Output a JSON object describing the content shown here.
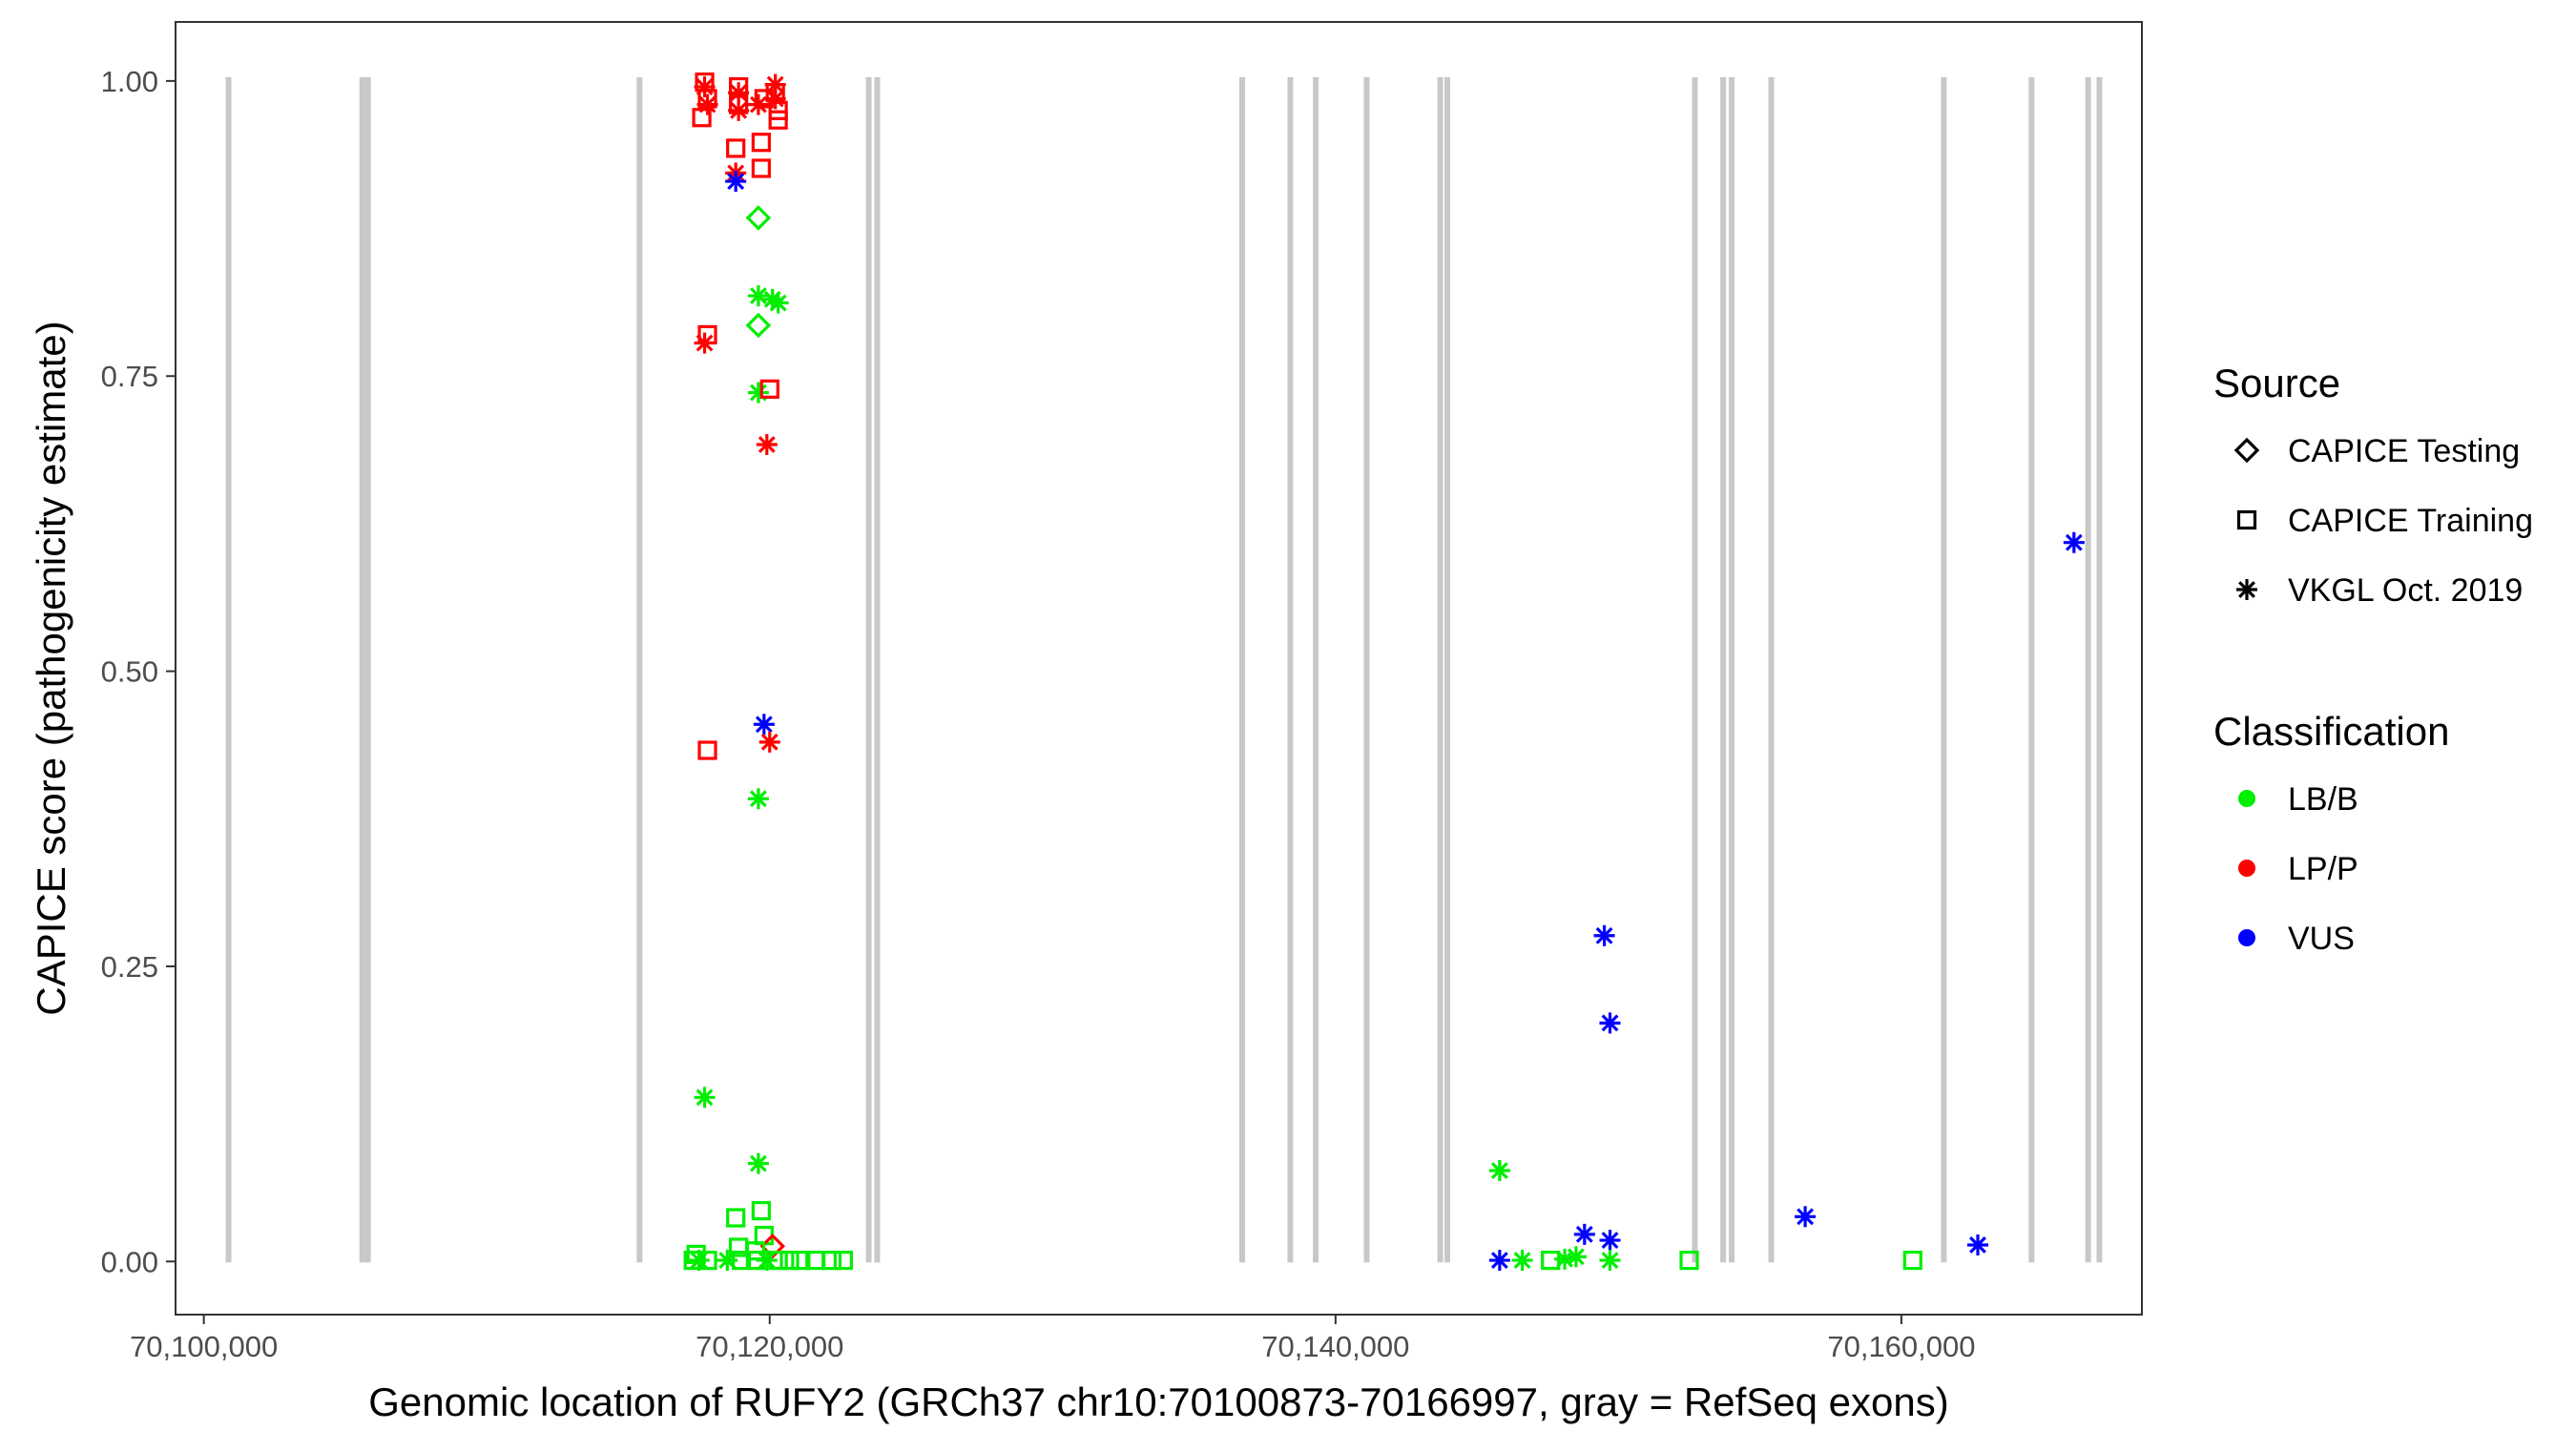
{
  "chart_data": {
    "type": "scatter",
    "title": "",
    "xlabel": "Genomic location of RUFY2 (GRCh37 chr10:70100873-70166997, gray = RefSeq exons)",
    "ylabel": "CAPICE score (pathogenicity estimate)",
    "xlim": [
      70099000,
      70168500
    ],
    "ylim": [
      -0.045,
      1.05
    ],
    "x_ticks": [
      70100000,
      70120000,
      70140000,
      70160000
    ],
    "x_tick_labels": [
      "70,100,000",
      "70,120,000",
      "70,140,000",
      "70,160,000"
    ],
    "y_ticks": [
      0,
      0.25,
      0.5,
      0.75,
      1.0
    ],
    "y_tick_labels": [
      "0.00",
      "0.25",
      "0.50",
      "0.75",
      "1.00"
    ],
    "grid": false,
    "exon_color": "#c8c8c8",
    "exons": [
      70100873,
      70105600,
      70105800,
      70115400,
      70123500,
      70123800,
      70136700,
      70138400,
      70139300,
      70141100,
      70143700,
      70143950,
      70152700,
      70153700,
      70154000,
      70155400,
      70161500,
      70164600,
      70166600,
      70166997
    ],
    "legend": {
      "placement": "right",
      "source_title": "Source",
      "source_items": [
        {
          "label": "CAPICE Testing",
          "shape": "diamond"
        },
        {
          "label": "CAPICE Training",
          "shape": "square"
        },
        {
          "label": "VKGL Oct. 2019",
          "shape": "asterisk"
        }
      ],
      "class_title": "Classification",
      "class_items": [
        {
          "label": "LB/B",
          "color": "#00ee00"
        },
        {
          "label": "LP/P",
          "color": "#ff0000"
        },
        {
          "label": "VUS",
          "color": "#0000ff"
        }
      ]
    },
    "colors": {
      "LB/B": "#00ee00",
      "LP/P": "#ff0000",
      "VUS": "#0000ff"
    },
    "points": [
      {
        "x": 70117700,
        "y": 0.999,
        "src": "square",
        "cls": "LP/P"
      },
      {
        "x": 70117700,
        "y": 0.995,
        "src": "asterisk",
        "cls": "LP/P"
      },
      {
        "x": 70117800,
        "y": 0.985,
        "src": "square",
        "cls": "LP/P"
      },
      {
        "x": 70117800,
        "y": 0.98,
        "src": "asterisk",
        "cls": "LP/P"
      },
      {
        "x": 70117600,
        "y": 0.969,
        "src": "square",
        "cls": "LP/P"
      },
      {
        "x": 70118900,
        "y": 0.995,
        "src": "square",
        "cls": "LP/P"
      },
      {
        "x": 70118900,
        "y": 0.99,
        "src": "asterisk",
        "cls": "LP/P"
      },
      {
        "x": 70118900,
        "y": 0.98,
        "src": "square",
        "cls": "LP/P"
      },
      {
        "x": 70118900,
        "y": 0.975,
        "src": "asterisk",
        "cls": "LP/P"
      },
      {
        "x": 70119600,
        "y": 0.98,
        "src": "asterisk",
        "cls": "LP/P"
      },
      {
        "x": 70119800,
        "y": 0.985,
        "src": "square",
        "cls": "LP/P"
      },
      {
        "x": 70120200,
        "y": 0.997,
        "src": "asterisk",
        "cls": "LP/P"
      },
      {
        "x": 70120200,
        "y": 0.99,
        "src": "square",
        "cls": "LP/P"
      },
      {
        "x": 70120200,
        "y": 0.985,
        "src": "asterisk",
        "cls": "LP/P"
      },
      {
        "x": 70120300,
        "y": 0.975,
        "src": "square",
        "cls": "LP/P"
      },
      {
        "x": 70120300,
        "y": 0.967,
        "src": "square",
        "cls": "LP/P"
      },
      {
        "x": 70118800,
        "y": 0.943,
        "src": "square",
        "cls": "LP/P"
      },
      {
        "x": 70119700,
        "y": 0.948,
        "src": "square",
        "cls": "LP/P"
      },
      {
        "x": 70119700,
        "y": 0.926,
        "src": "square",
        "cls": "LP/P"
      },
      {
        "x": 70118800,
        "y": 0.922,
        "src": "asterisk",
        "cls": "LP/P"
      },
      {
        "x": 70118800,
        "y": 0.915,
        "src": "asterisk",
        "cls": "VUS"
      },
      {
        "x": 70119600,
        "y": 0.884,
        "src": "diamond",
        "cls": "LB/B"
      },
      {
        "x": 70119600,
        "y": 0.818,
        "src": "asterisk",
        "cls": "LB/B"
      },
      {
        "x": 70120100,
        "y": 0.815,
        "src": "asterisk",
        "cls": "LB/B"
      },
      {
        "x": 70120300,
        "y": 0.812,
        "src": "asterisk",
        "cls": "LB/B"
      },
      {
        "x": 70119600,
        "y": 0.793,
        "src": "diamond",
        "cls": "LB/B"
      },
      {
        "x": 70117800,
        "y": 0.785,
        "src": "square",
        "cls": "LP/P"
      },
      {
        "x": 70117700,
        "y": 0.778,
        "src": "asterisk",
        "cls": "LP/P"
      },
      {
        "x": 70119600,
        "y": 0.736,
        "src": "asterisk",
        "cls": "LB/B"
      },
      {
        "x": 70120000,
        "y": 0.739,
        "src": "square",
        "cls": "LP/P"
      },
      {
        "x": 70119900,
        "y": 0.692,
        "src": "asterisk",
        "cls": "LP/P"
      },
      {
        "x": 70119800,
        "y": 0.455,
        "src": "asterisk",
        "cls": "VUS"
      },
      {
        "x": 70120000,
        "y": 0.44,
        "src": "asterisk",
        "cls": "LP/P"
      },
      {
        "x": 70117800,
        "y": 0.433,
        "src": "square",
        "cls": "LP/P"
      },
      {
        "x": 70119600,
        "y": 0.392,
        "src": "asterisk",
        "cls": "LB/B"
      },
      {
        "x": 70117700,
        "y": 0.139,
        "src": "asterisk",
        "cls": "LB/B"
      },
      {
        "x": 70119600,
        "y": 0.083,
        "src": "asterisk",
        "cls": "LB/B"
      },
      {
        "x": 70119700,
        "y": 0.043,
        "src": "square",
        "cls": "LB/B"
      },
      {
        "x": 70118800,
        "y": 0.037,
        "src": "square",
        "cls": "LB/B"
      },
      {
        "x": 70119800,
        "y": 0.022,
        "src": "square",
        "cls": "LB/B"
      },
      {
        "x": 70120100,
        "y": 0.013,
        "src": "diamond",
        "cls": "LP/P"
      },
      {
        "x": 70118900,
        "y": 0.012,
        "src": "square",
        "cls": "LB/B"
      },
      {
        "x": 70119500,
        "y": 0.009,
        "src": "square",
        "cls": "LB/B"
      },
      {
        "x": 70117400,
        "y": 0.006,
        "src": "square",
        "cls": "LB/B"
      },
      {
        "x": 70117300,
        "y": 0.001,
        "src": "square",
        "cls": "LB/B"
      },
      {
        "x": 70117500,
        "y": 0.001,
        "src": "asterisk",
        "cls": "LB/B"
      },
      {
        "x": 70117800,
        "y": 0.001,
        "src": "square",
        "cls": "LB/B"
      },
      {
        "x": 70118500,
        "y": 0.001,
        "src": "asterisk",
        "cls": "LB/B"
      },
      {
        "x": 70119000,
        "y": 0.001,
        "src": "square",
        "cls": "LB/B"
      },
      {
        "x": 70119500,
        "y": 0.001,
        "src": "square",
        "cls": "LB/B"
      },
      {
        "x": 70119900,
        "y": 0.001,
        "src": "asterisk",
        "cls": "LB/B"
      },
      {
        "x": 70120300,
        "y": 0.001,
        "src": "square",
        "cls": "LB/B"
      },
      {
        "x": 70120700,
        "y": 0.001,
        "src": "square",
        "cls": "LB/B"
      },
      {
        "x": 70121100,
        "y": 0.001,
        "src": "square",
        "cls": "LB/B"
      },
      {
        "x": 70121600,
        "y": 0.001,
        "src": "square",
        "cls": "LB/B"
      },
      {
        "x": 70122200,
        "y": 0.001,
        "src": "square",
        "cls": "LB/B"
      },
      {
        "x": 70122600,
        "y": 0.001,
        "src": "square",
        "cls": "LB/B"
      },
      {
        "x": 70145800,
        "y": 0.077,
        "src": "asterisk",
        "cls": "LB/B"
      },
      {
        "x": 70145800,
        "y": 0.001,
        "src": "asterisk",
        "cls": "VUS"
      },
      {
        "x": 70146600,
        "y": 0.001,
        "src": "asterisk",
        "cls": "LB/B"
      },
      {
        "x": 70147600,
        "y": 0.001,
        "src": "square",
        "cls": "LB/B"
      },
      {
        "x": 70148100,
        "y": 0.002,
        "src": "asterisk",
        "cls": "LB/B"
      },
      {
        "x": 70148500,
        "y": 0.004,
        "src": "asterisk",
        "cls": "LB/B"
      },
      {
        "x": 70148800,
        "y": 0.023,
        "src": "asterisk",
        "cls": "VUS"
      },
      {
        "x": 70149500,
        "y": 0.276,
        "src": "asterisk",
        "cls": "VUS"
      },
      {
        "x": 70149700,
        "y": 0.202,
        "src": "asterisk",
        "cls": "VUS"
      },
      {
        "x": 70149700,
        "y": 0.018,
        "src": "asterisk",
        "cls": "VUS"
      },
      {
        "x": 70149700,
        "y": 0.001,
        "src": "asterisk",
        "cls": "LB/B"
      },
      {
        "x": 70152500,
        "y": 0.001,
        "src": "square",
        "cls": "LB/B"
      },
      {
        "x": 70156600,
        "y": 0.038,
        "src": "asterisk",
        "cls": "VUS"
      },
      {
        "x": 70160400,
        "y": 0.001,
        "src": "square",
        "cls": "LB/B"
      },
      {
        "x": 70162700,
        "y": 0.014,
        "src": "asterisk",
        "cls": "VUS"
      },
      {
        "x": 70166100,
        "y": 0.609,
        "src": "asterisk",
        "cls": "VUS"
      }
    ]
  }
}
